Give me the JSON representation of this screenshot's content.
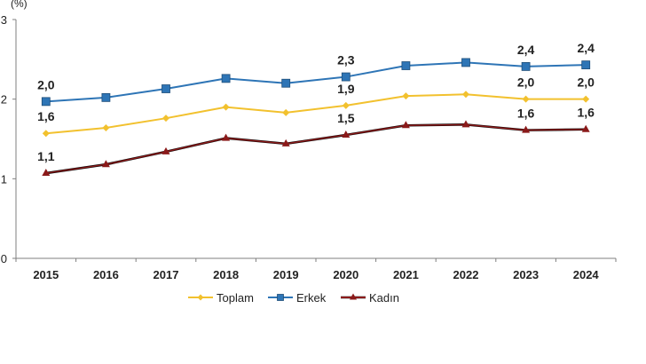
{
  "chart_data": {
    "type": "line",
    "title": "",
    "ylabel": "(%)",
    "xlabel": "",
    "ylim": [
      0,
      3
    ],
    "yticks": [
      "0",
      "1",
      "2",
      "3"
    ],
    "categories": [
      "2015",
      "2016",
      "2017",
      "2018",
      "2019",
      "2020",
      "2021",
      "2022",
      "2023",
      "2024"
    ],
    "grid": false,
    "legend_position": "bottom",
    "series": [
      {
        "name": "Toplam",
        "color": "#F2C12E",
        "marker": "diamond",
        "values": [
          1.57,
          1.64,
          1.76,
          1.9,
          1.83,
          1.92,
          2.04,
          2.06,
          2.0,
          2.0
        ],
        "labels": {
          "0": "1,6",
          "5": "1,9",
          "8": "2,0",
          "9": "2,0"
        }
      },
      {
        "name": "Erkek",
        "color": "#2E75B6",
        "marker": "square",
        "values": [
          1.97,
          2.02,
          2.13,
          2.26,
          2.2,
          2.28,
          2.42,
          2.46,
          2.41,
          2.43
        ],
        "labels": {
          "0": "2,0",
          "5": "2,3",
          "8": "2,4",
          "9": "2,4"
        }
      },
      {
        "name": "Kadın",
        "color": "#8B1A1A",
        "marker": "triangle",
        "values": [
          1.07,
          1.18,
          1.34,
          1.51,
          1.44,
          1.55,
          1.67,
          1.68,
          1.61,
          1.62
        ],
        "labels": {
          "0": "1,1",
          "5": "1,5",
          "8": "1,6",
          "9": "1,6"
        }
      }
    ]
  }
}
